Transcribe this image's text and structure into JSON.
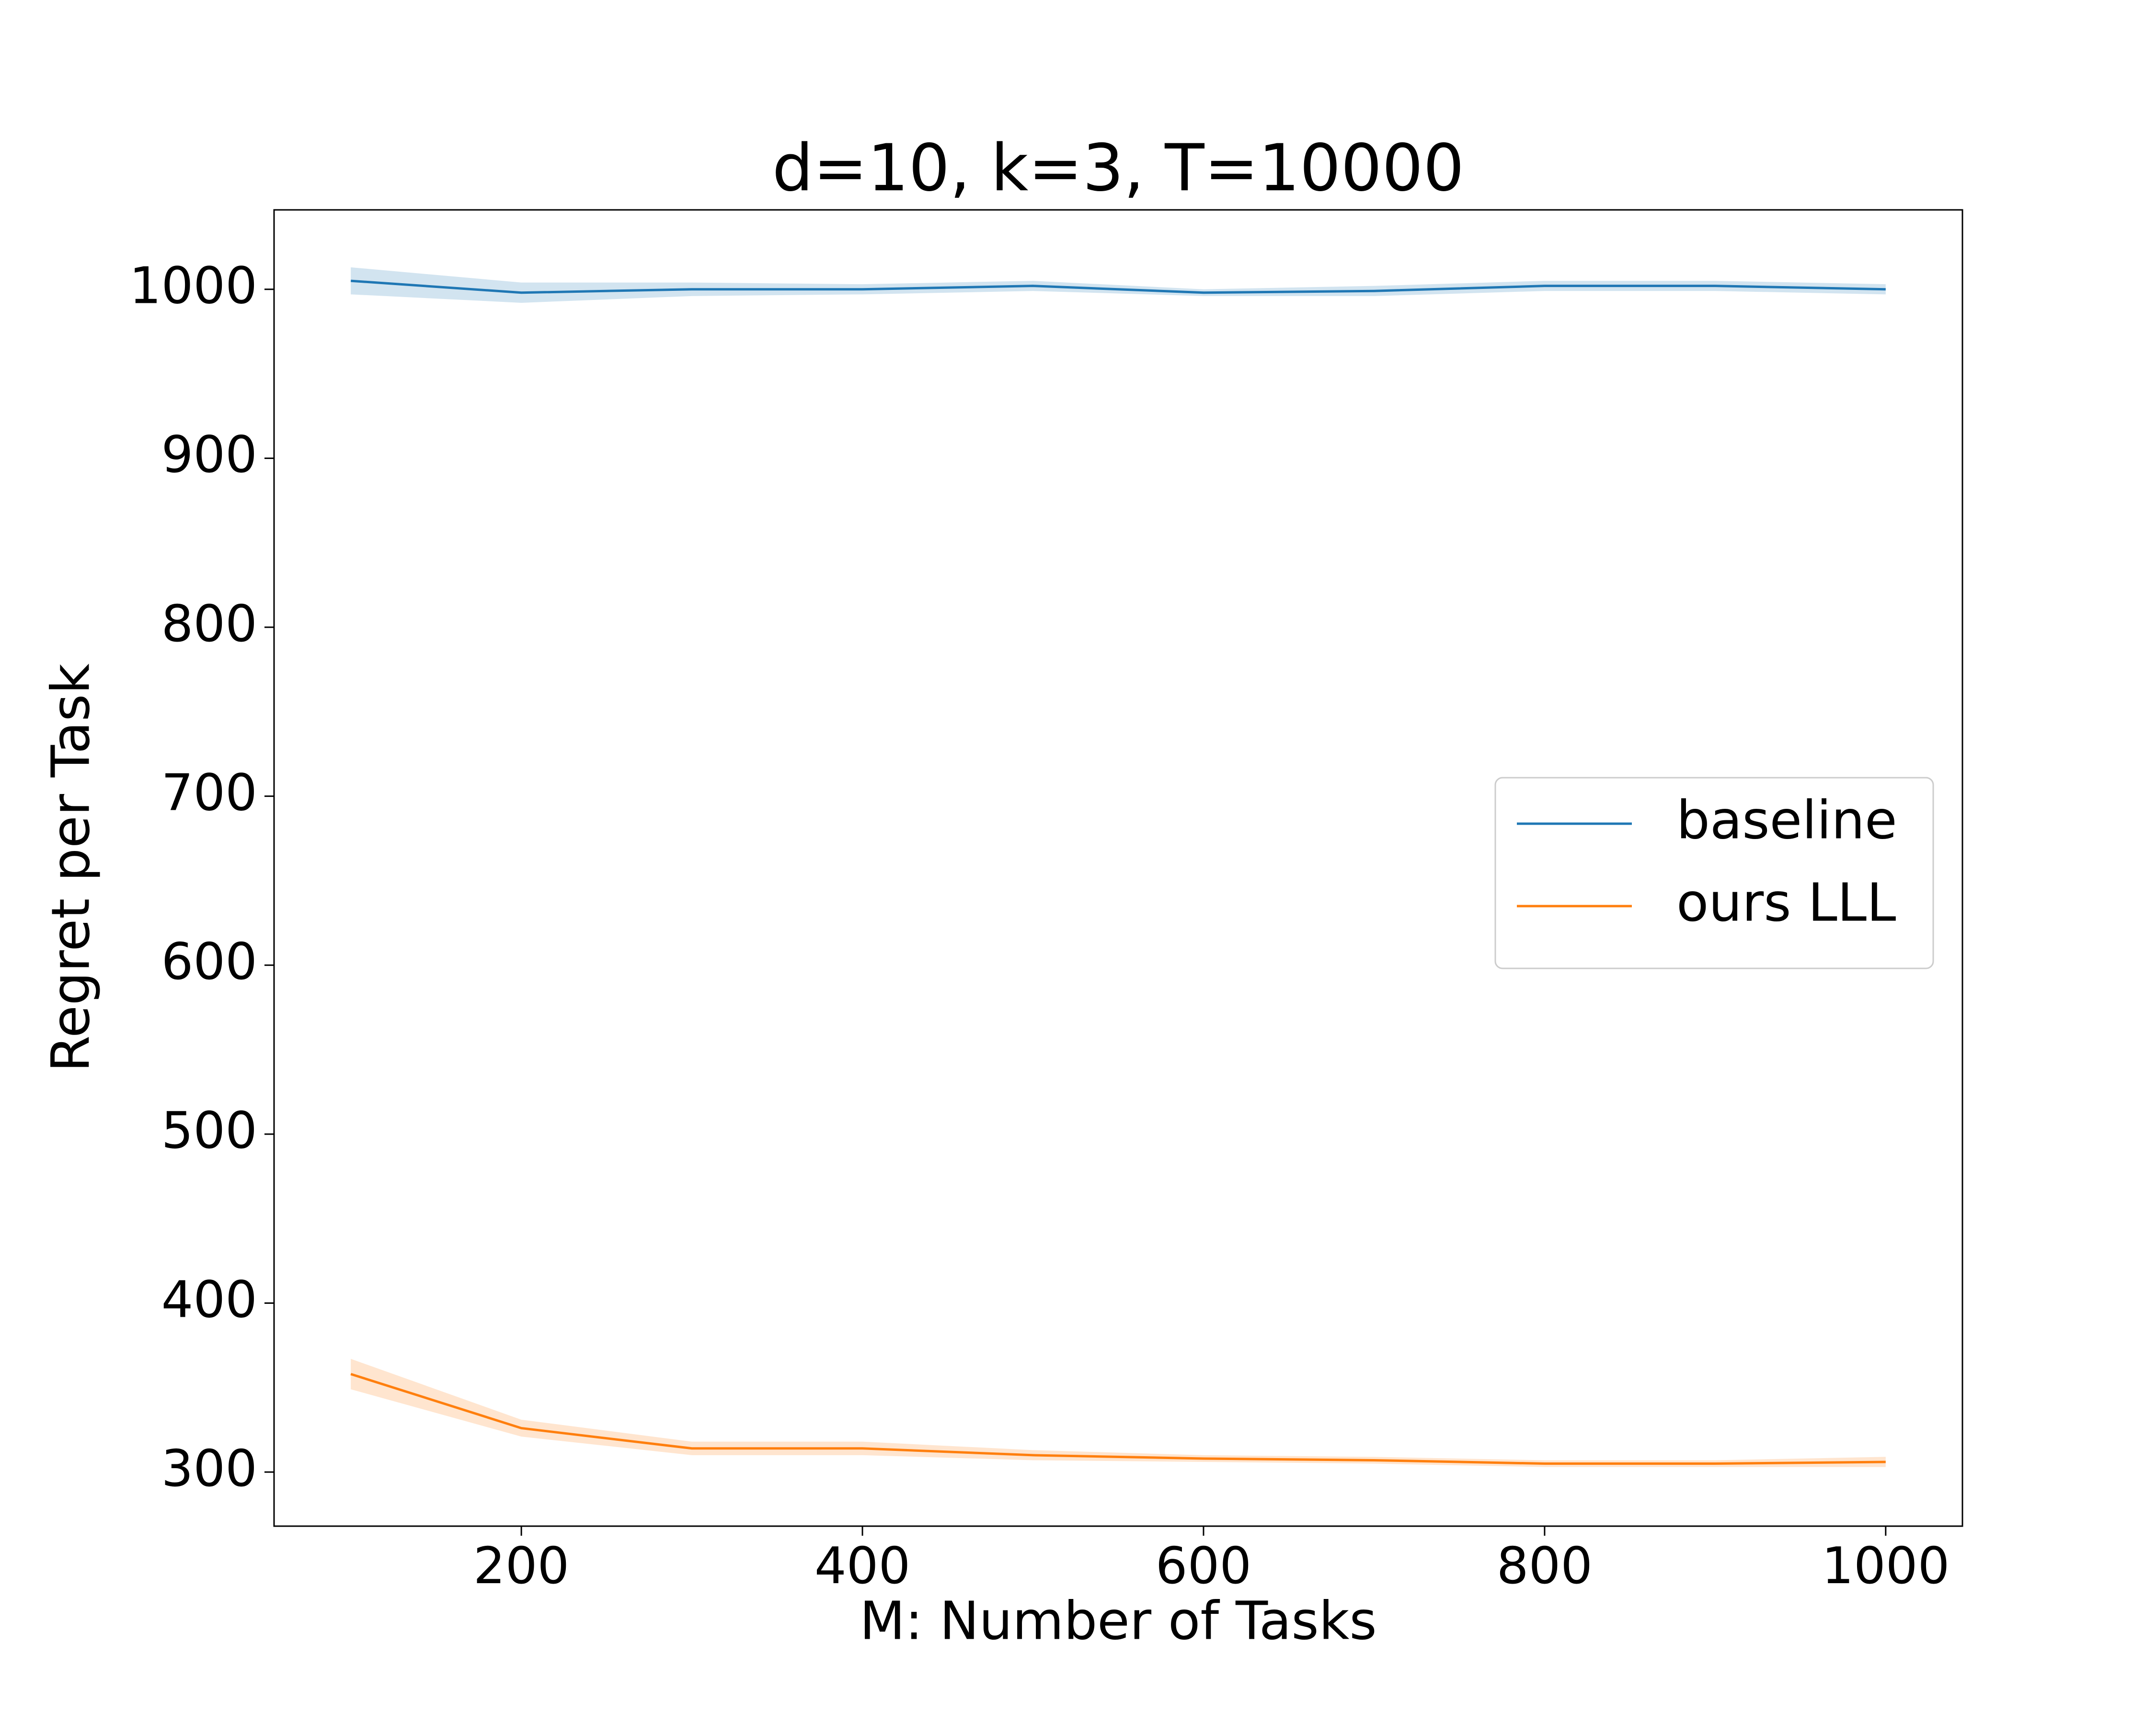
{
  "chart_data": {
    "type": "line",
    "title": "d=10, k=3, T=10000",
    "x_label": "M: Number of Tasks",
    "y_label": "Regret per Task",
    "x": [
      100,
      200,
      300,
      400,
      500,
      600,
      700,
      800,
      900,
      1000
    ],
    "series": [
      {
        "name": "baseline",
        "color": "#1f77b4",
        "values": [
          1005,
          998,
          1000,
          1000,
          1002,
          998,
          999,
          1002,
          1002,
          1000
        ],
        "lower": [
          997,
          992,
          996,
          997,
          999,
          996,
          996,
          999,
          999,
          997
        ],
        "upper": [
          1013,
          1004,
          1004,
          1003,
          1005,
          1000,
          1002,
          1005,
          1005,
          1003
        ]
      },
      {
        "name": "ours LLL",
        "color": "#ff7f0e",
        "values": [
          358,
          326,
          314,
          314,
          310,
          308,
          307,
          305,
          305,
          306
        ],
        "lower": [
          349,
          321,
          310,
          310,
          307,
          306,
          305,
          303,
          303,
          303
        ],
        "upper": [
          367,
          331,
          318,
          318,
          313,
          310,
          309,
          307,
          307,
          309
        ]
      }
    ],
    "xlim": [
      55,
      1045
    ],
    "ylim": [
      268,
      1047
    ],
    "xticks": [
      200,
      400,
      600,
      800,
      1000
    ],
    "yticks": [
      300,
      400,
      500,
      600,
      700,
      800,
      900,
      1000
    ],
    "legend": "right"
  }
}
